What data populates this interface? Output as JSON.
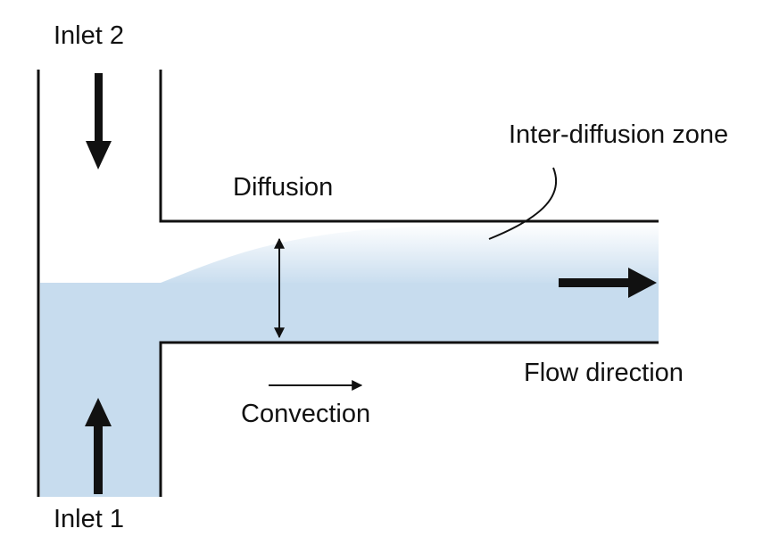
{
  "labels": {
    "inlet_2": "Inlet 2",
    "inlet_1": "Inlet 1",
    "inter_diffusion_zone": "Inter-diffusion zone",
    "diffusion": "Diffusion",
    "convection": "Convection",
    "flow_direction": "Flow direction"
  },
  "colors": {
    "fluid": "#c7dcee",
    "wall": "#111111",
    "background": "#ffffff"
  },
  "icons": [
    "arrow-down-icon",
    "arrow-up-icon",
    "arrow-right-icon",
    "double-headed-arrow-icon"
  ]
}
